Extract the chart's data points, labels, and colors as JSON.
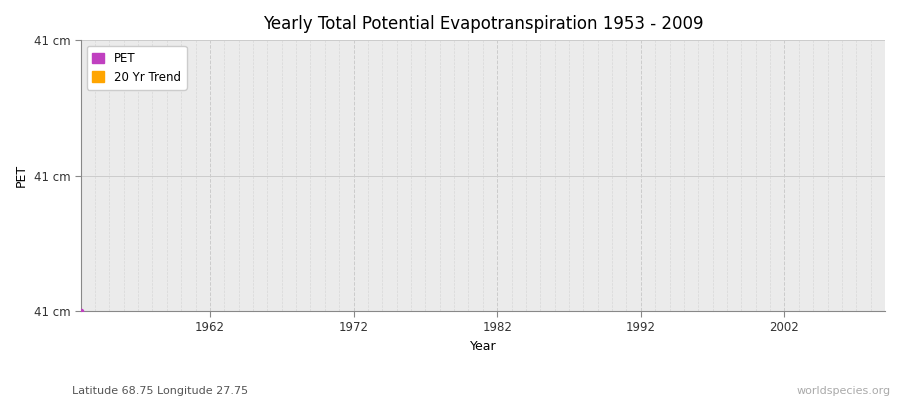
{
  "title": "Yearly Total Potential Evapotranspiration 1953 - 2009",
  "xlabel": "Year",
  "ylabel": "PET",
  "subtitle": "Latitude 68.75 Longitude 27.75",
  "watermark": "worldspecies.org",
  "xmin": 1953,
  "xmax": 2009,
  "ytick_labels": [
    "41 cm",
    "41 cm",
    "41 cm"
  ],
  "xticks": [
    1962,
    1972,
    1982,
    1992,
    2002
  ],
  "pet_color": "#c040c0",
  "trend_color": "#ffa500",
  "fig_bg_color": "#ffffff",
  "plot_bg_color": "#ebebeb",
  "grid_major_color": "#cccccc",
  "grid_minor_color": "#d8d8d8",
  "data_x": [
    1953
  ],
  "data_y": [
    41
  ]
}
